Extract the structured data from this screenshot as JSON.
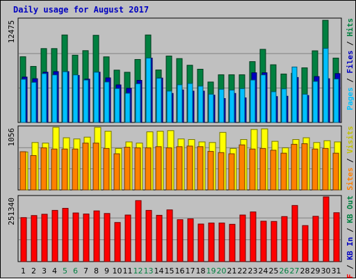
{
  "chart_data": {
    "type": "bar",
    "title": "Daily usage for August 2017",
    "categories": [
      "1",
      "2",
      "3",
      "4",
      "5",
      "6",
      "7",
      "8",
      "9",
      "10",
      "11",
      "12",
      "13",
      "14",
      "15",
      "16",
      "17",
      "18",
      "19",
      "20",
      "21",
      "22",
      "23",
      "24",
      "25",
      "26",
      "27",
      "28",
      "29",
      "30",
      "31"
    ],
    "weekend_days": [
      "5",
      "6",
      "12",
      "13",
      "19",
      "20",
      "26",
      "27"
    ],
    "panels": [
      {
        "name": "requests",
        "ymax_label": "12475",
        "ymax": 12475,
        "legend": [
          "Pages",
          "Files",
          "Hits"
        ],
        "series": [
          {
            "name": "Hits",
            "color": "#008040",
            "values": [
              7960,
              6790,
              8950,
              8950,
              10600,
              8150,
              8700,
              10560,
              7950,
              6340,
              6080,
              7630,
              10600,
              6360,
              8050,
              7740,
              6930,
              6450,
              4900,
              5780,
              5780,
              5780,
              7370,
              8860,
              6990,
              5870,
              5960,
              6620,
              8680,
              12380,
              7800
            ]
          },
          {
            "name": "Files",
            "color": "#0000c0",
            "values": [
              5500,
              5300,
              6090,
              6160,
              6160,
              5700,
              5250,
              6090,
              5400,
              4550,
              4140,
              5100,
              7800,
              5380,
              3520,
              3940,
              3800,
              3800,
              3310,
              2900,
              3520,
              2980,
              6020,
              6020,
              3140,
              3180,
              5450,
              3270,
              5560,
              5300,
              5920
            ]
          },
          {
            "name": "Pages",
            "color": "#00c0ff",
            "values": [
              5230,
              4860,
              5920,
              5760,
              6150,
              5760,
              5140,
              6090,
              4900,
              4110,
              3540,
              4690,
              7800,
              5360,
              3800,
              4560,
              4720,
              4400,
              3420,
              4020,
              3920,
              4100,
              5140,
              5760,
              3720,
              4070,
              6720,
              3420,
              4970,
              8970,
              5260
            ]
          }
        ]
      },
      {
        "name": "visits",
        "ymax_label": "1056",
        "ymax": 1056,
        "legend": [
          "Sites",
          "Visits"
        ],
        "series": [
          {
            "name": "Visits",
            "color": "#ffff00",
            "values": [
              640,
              800,
              790,
              1056,
              880,
              860,
              890,
              1056,
              990,
              700,
              810,
              790,
              980,
              990,
              1000,
              860,
              850,
              810,
              800,
              970,
              700,
              850,
              1020,
              1030,
              820,
              710,
              850,
              880,
              800,
              830,
              810
            ]
          },
          {
            "name": "Sites",
            "color": "#ff8000",
            "values": [
              645,
              580,
              710,
              690,
              690,
              690,
              790,
              790,
              700,
              610,
              720,
              710,
              710,
              730,
              710,
              730,
              740,
              730,
              650,
              630,
              610,
              760,
              690,
              700,
              670,
              620,
              770,
              780,
              690,
              700,
              620
            ]
          }
        ]
      },
      {
        "name": "kbytes",
        "ymax_label": "251340",
        "ymax": 251340,
        "legend": [
          "KB F",
          "KB In",
          "KB Out"
        ],
        "series": [
          {
            "name": "KB F",
            "color": "#ff0000",
            "values": [
              171000,
              179000,
              184000,
              199000,
              207000,
              189000,
              185000,
              197000,
              187000,
              152000,
              181000,
              237000,
              199000,
              180000,
              201000,
              163000,
              166000,
              146000,
              150000,
              150000,
              145000,
              181000,
              193000,
              157000,
              156000,
              175000,
              218000,
              140000,
              176000,
              251340,
              190000
            ]
          }
        ]
      }
    ]
  }
}
